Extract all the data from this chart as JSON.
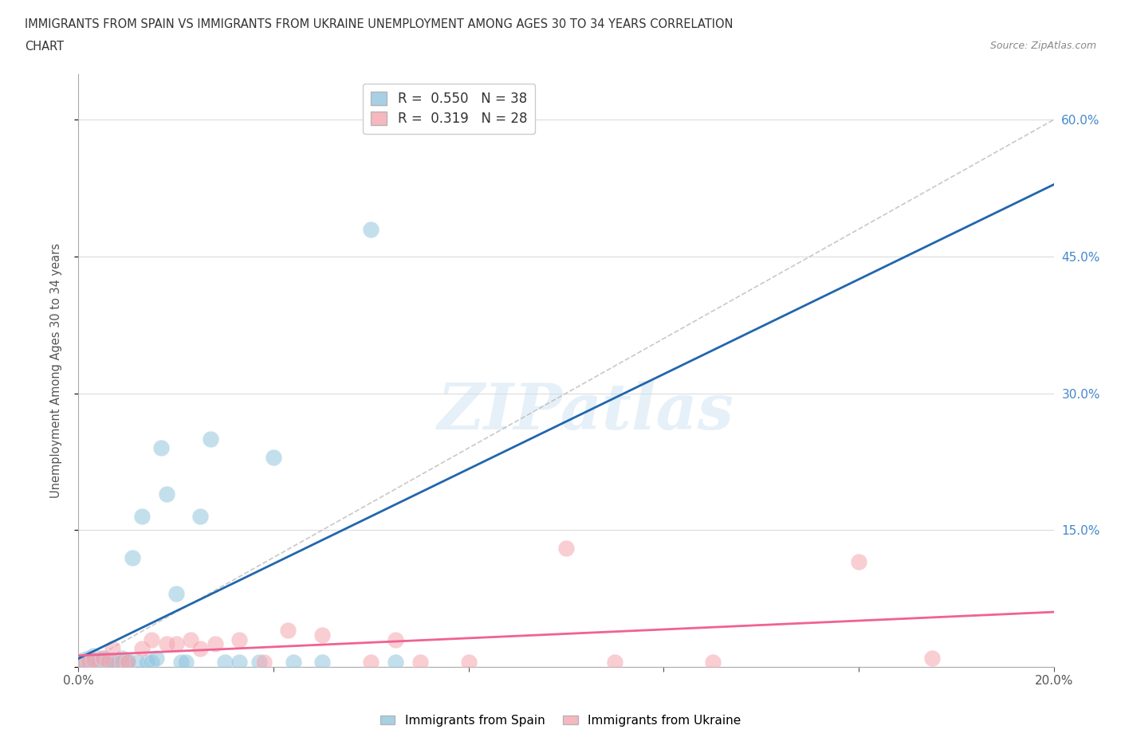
{
  "title_line1": "IMMIGRANTS FROM SPAIN VS IMMIGRANTS FROM UKRAINE UNEMPLOYMENT AMONG AGES 30 TO 34 YEARS CORRELATION",
  "title_line2": "CHART",
  "source_text": "Source: ZipAtlas.com",
  "ylabel": "Unemployment Among Ages 30 to 34 years",
  "xlim": [
    0.0,
    0.2
  ],
  "ylim": [
    0.0,
    0.65
  ],
  "xtick_positions": [
    0.0,
    0.04,
    0.08,
    0.12,
    0.16,
    0.2
  ],
  "xticklabels": [
    "0.0%",
    "",
    "",
    "",
    "",
    "20.0%"
  ],
  "ytick_positions": [
    0.0,
    0.15,
    0.3,
    0.45,
    0.6
  ],
  "yticklabels_right": [
    "",
    "15.0%",
    "30.0%",
    "45.0%",
    "60.0%"
  ],
  "color_spain": "#92c5de",
  "color_ukraine": "#f4a7b0",
  "trendline_color_spain": "#2166ac",
  "trendline_color_ukraine": "#f06292",
  "diagonal_color": "#bbbbbb",
  "background_color": "#ffffff",
  "watermark": "ZIPatlas",
  "spain_x": [
    0.0,
    0.001,
    0.002,
    0.002,
    0.003,
    0.003,
    0.004,
    0.004,
    0.005,
    0.005,
    0.006,
    0.007,
    0.007,
    0.008,
    0.009,
    0.01,
    0.01,
    0.011,
    0.012,
    0.013,
    0.014,
    0.015,
    0.016,
    0.017,
    0.018,
    0.02,
    0.021,
    0.022,
    0.025,
    0.027,
    0.03,
    0.033,
    0.037,
    0.04,
    0.044,
    0.05,
    0.06,
    0.065
  ],
  "spain_y": [
    0.005,
    0.008,
    0.005,
    0.01,
    0.005,
    0.012,
    0.008,
    0.005,
    0.005,
    0.01,
    0.008,
    0.005,
    0.007,
    0.005,
    0.01,
    0.005,
    0.007,
    0.12,
    0.005,
    0.165,
    0.005,
    0.005,
    0.01,
    0.24,
    0.19,
    0.08,
    0.005,
    0.005,
    0.165,
    0.25,
    0.005,
    0.005,
    0.005,
    0.23,
    0.005,
    0.005,
    0.48,
    0.005
  ],
  "ukraine_x": [
    0.0,
    0.002,
    0.003,
    0.005,
    0.006,
    0.007,
    0.009,
    0.01,
    0.013,
    0.015,
    0.018,
    0.02,
    0.023,
    0.025,
    0.028,
    0.033,
    0.038,
    0.043,
    0.05,
    0.06,
    0.065,
    0.07,
    0.08,
    0.1,
    0.11,
    0.13,
    0.16,
    0.175
  ],
  "ukraine_y": [
    0.005,
    0.005,
    0.008,
    0.01,
    0.005,
    0.02,
    0.005,
    0.005,
    0.02,
    0.03,
    0.025,
    0.025,
    0.03,
    0.02,
    0.025,
    0.03,
    0.005,
    0.04,
    0.035,
    0.005,
    0.03,
    0.005,
    0.005,
    0.13,
    0.005,
    0.005,
    0.115,
    0.01
  ]
}
